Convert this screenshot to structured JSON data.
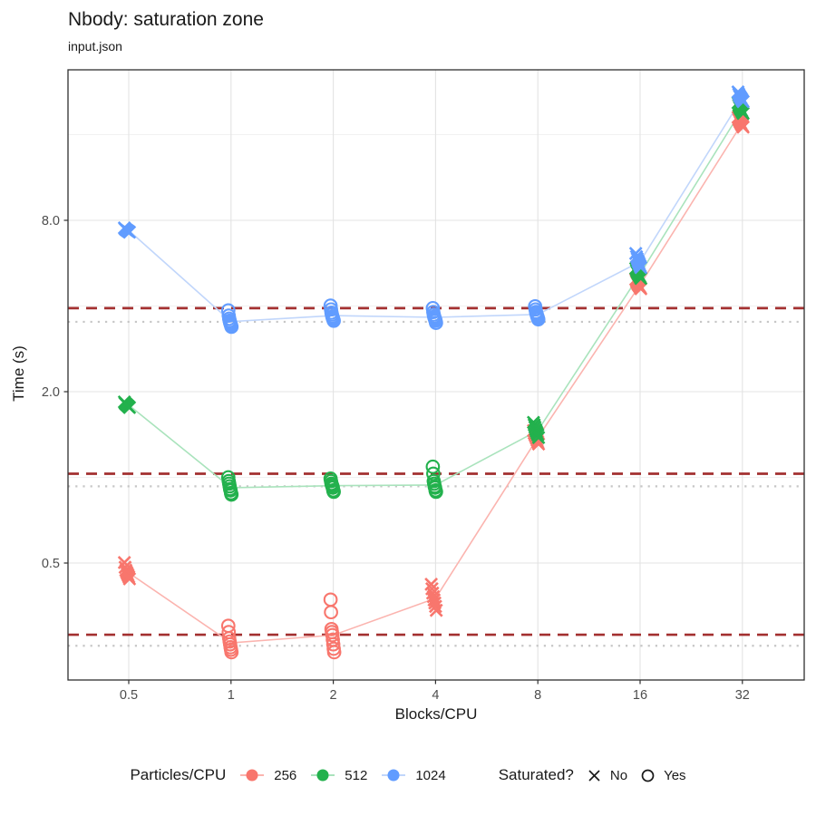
{
  "legend": {
    "color_title": "Particles/CPU",
    "shape_title": "Saturated?",
    "color_items": [
      {
        "label": "256",
        "color": "#F8766D",
        "line_color": "#FBB4AF"
      },
      {
        "label": "512",
        "color": "#23B14D",
        "line_color": "#A9E3BC"
      },
      {
        "label": "1024",
        "color": "#619CFF",
        "line_color": "#C1D6FB"
      }
    ],
    "shape_items": [
      {
        "label": "No",
        "marker": "x-cross"
      },
      {
        "label": "Yes",
        "marker": "open-circle"
      }
    ]
  },
  "style": {
    "threshold_dash_color": "#A33030",
    "baseline_dot_color": "#C6C6C6",
    "grid_major_color": "#E3E3E3",
    "grid_minor_color": "#EDEDED",
    "panel_border_color": "#2F2F2F",
    "tick_label_color": "#4D4D4D"
  },
  "chart_data": {
    "type": "scatter",
    "title": "Nbody: saturation zone",
    "subtitle": "input.json",
    "xlabel": "Blocks/CPU",
    "ylabel": "Time (s)",
    "x_scale": "log2",
    "y_scale": "log2",
    "grid": true,
    "legend_position": "bottom",
    "x_ticks": [
      0.5,
      1,
      2,
      4,
      8,
      16,
      32
    ],
    "x_tick_labels": [
      "0.5",
      "1",
      "2",
      "4",
      "8",
      "16",
      "32"
    ],
    "y_ticks": [
      0.5,
      2.0,
      8.0
    ],
    "y_tick_labels": [
      "0.5",
      "2.0",
      "8.0"
    ],
    "y_minor_ticks": [
      1,
      4,
      16
    ],
    "xlim": [
      0.33,
      48
    ],
    "ylim": [
      0.19,
      27
    ],
    "series": [
      {
        "name": "256",
        "color": "#F8766D",
        "line_color": "#FBB4AF",
        "groups": [
          {
            "x": 0.5,
            "saturated": "No",
            "times": [
              0.502,
              0.483,
              0.472,
              0.465,
              0.459,
              0.453,
              0.447,
              0.44
            ]
          },
          {
            "x": 1,
            "saturated": "Yes",
            "times": [
              0.301,
              0.286,
              0.272,
              0.265,
              0.259,
              0.253,
              0.248,
              0.243
            ]
          },
          {
            "x": 2,
            "saturated": "Yes",
            "times": [
              0.372,
              0.336,
              0.293,
              0.286,
              0.279,
              0.269,
              0.259,
              0.25,
              0.243
            ]
          },
          {
            "x": 4,
            "saturated": "No",
            "times": [
              0.421,
              0.406,
              0.392,
              0.381,
              0.371,
              0.362,
              0.352,
              0.341
            ]
          },
          {
            "x": 8,
            "saturated": "No",
            "times": [
              1.46,
              1.43,
              1.41,
              1.39,
              1.37,
              1.35,
              1.33,
              1.31
            ]
          },
          {
            "x": 16,
            "saturated": "No",
            "times": [
              4.96,
              4.88,
              4.82,
              4.77,
              4.73,
              4.69,
              4.65,
              4.6
            ]
          },
          {
            "x": 32,
            "saturated": "No",
            "times": [
              18.4,
              18.1,
              17.9,
              17.7,
              17.5,
              17.3,
              17.2,
              17.0
            ]
          }
        ]
      },
      {
        "name": "512",
        "color": "#23B14D",
        "line_color": "#A9E3BC",
        "groups": [
          {
            "x": 0.5,
            "saturated": "No",
            "times": [
              1.84,
              1.82,
              1.81,
              1.8,
              1.79,
              1.78,
              1.77,
              1.76
            ]
          },
          {
            "x": 1,
            "saturated": "Yes",
            "times": [
              1.0,
              0.97,
              0.95,
              0.93,
              0.91,
              0.9,
              0.88,
              0.87
            ]
          },
          {
            "x": 2,
            "saturated": "Yes",
            "times": [
              0.99,
              0.97,
              0.95,
              0.94,
              0.93,
              0.92,
              0.9,
              0.89
            ]
          },
          {
            "x": 4,
            "saturated": "Yes",
            "times": [
              1.09,
              1.03,
              0.97,
              0.95,
              0.93,
              0.92,
              0.9,
              0.89
            ]
          },
          {
            "x": 8,
            "saturated": "No",
            "times": [
              1.56,
              1.53,
              1.5,
              1.47,
              1.45,
              1.43,
              1.41,
              1.38
            ]
          },
          {
            "x": 16,
            "saturated": "No",
            "times": [
              5.42,
              5.33,
              5.26,
              5.21,
              5.16,
              5.11,
              5.06,
              5.0
            ]
          },
          {
            "x": 32,
            "saturated": "No",
            "times": [
              20.7,
              20.3,
              20.0,
              19.8,
              19.6,
              19.4,
              19.2,
              19.0
            ]
          }
        ]
      },
      {
        "name": "1024",
        "color": "#619CFF",
        "line_color": "#C1D6FB",
        "groups": [
          {
            "x": 0.5,
            "saturated": "No",
            "times": [
              7.52,
              7.46,
              7.42,
              7.39,
              7.36,
              7.33,
              7.3,
              7.27
            ]
          },
          {
            "x": 1,
            "saturated": "Yes",
            "times": [
              3.86,
              3.7,
              3.61,
              3.55,
              3.5,
              3.46,
              3.42,
              3.38
            ]
          },
          {
            "x": 2,
            "saturated": "Yes",
            "times": [
              4.01,
              3.89,
              3.79,
              3.73,
              3.67,
              3.63,
              3.59,
              3.55
            ]
          },
          {
            "x": 4,
            "saturated": "Yes",
            "times": [
              3.93,
              3.81,
              3.73,
              3.67,
              3.63,
              3.59,
              3.55,
              3.49
            ]
          },
          {
            "x": 8,
            "saturated": "Yes",
            "times": [
              3.99,
              3.89,
              3.81,
              3.76,
              3.71,
              3.67,
              3.63,
              3.59
            ]
          },
          {
            "x": 16,
            "saturated": "No",
            "times": [
              6.12,
              5.96,
              5.86,
              5.76,
              5.69,
              5.61,
              5.53,
              5.46
            ]
          },
          {
            "x": 32,
            "saturated": "No",
            "times": [
              22.6,
              22.2,
              21.9,
              21.7,
              21.5,
              21.3,
              21.1,
              20.9
            ]
          }
        ]
      }
    ],
    "reference_lines": [
      {
        "series": "256",
        "dashed_threshold": 0.28,
        "dotted_baseline": 0.256
      },
      {
        "series": "512",
        "dashed_threshold": 1.03,
        "dotted_baseline": 0.93
      },
      {
        "series": "1024",
        "dashed_threshold": 3.93,
        "dotted_baseline": 3.52
      }
    ]
  }
}
